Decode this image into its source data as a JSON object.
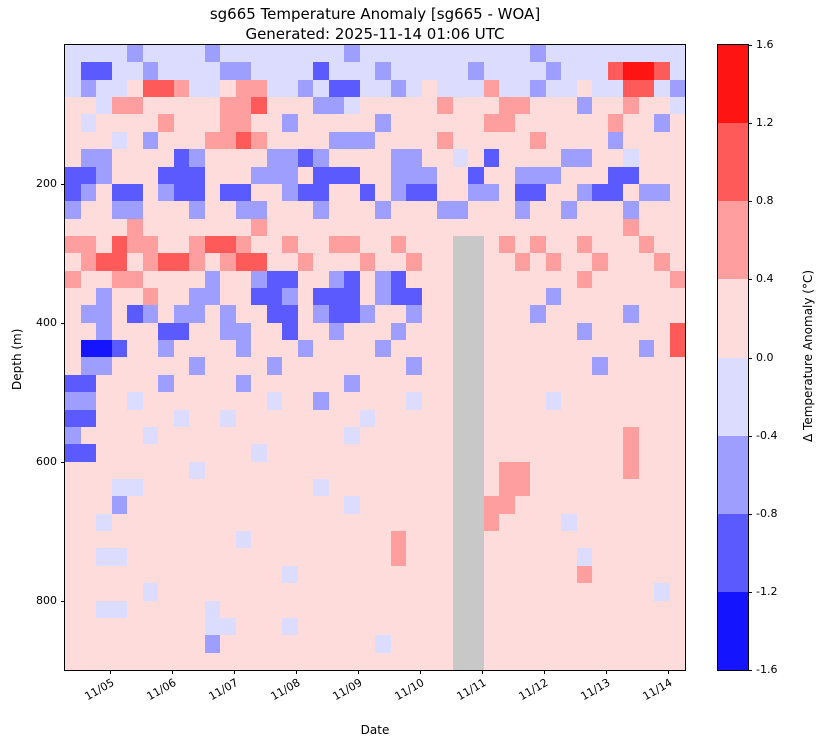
{
  "figure": {
    "title": "sg665 Temperature Anomaly [sg665 - WOA]",
    "subtitle": "Generated: 2025-11-14 01:06 UTC"
  },
  "chart_data": {
    "type": "heatmap",
    "title": "sg665 Temperature Anomaly [sg665 - WOA]",
    "subtitle": "Generated: 2025-11-14 01:06 UTC",
    "xlabel": "Date",
    "ylabel": "Depth (m)",
    "x_tick_labels": [
      "11/05",
      "11/06",
      "11/07",
      "11/08",
      "11/09",
      "11/10",
      "11/11",
      "11/12",
      "11/13",
      "11/14"
    ],
    "y_tick_labels": [
      "200",
      "400",
      "600",
      "800"
    ],
    "y_tick_depths": [
      200,
      400,
      600,
      800
    ],
    "depth_range_m": [
      0,
      900
    ],
    "n_time_columns": 40,
    "n_depth_rows": 36,
    "cell_depth_m": 25,
    "grid_on": false,
    "colorbar": {
      "label": "Δ Temperature Anomaly (°C)",
      "tick_labels": [
        "1.6",
        "1.2",
        "0.8",
        "0.4",
        "0.0",
        "-0.4",
        "-0.8",
        "-1.2",
        "-1.6"
      ],
      "range": [
        -1.6,
        1.6
      ],
      "segment_colors_top_to_bottom": [
        "#ff1414",
        "#ff5a5a",
        "#ff9e9e",
        "#ffdcdc",
        "#dcdcff",
        "#9e9eff",
        "#5a5aff",
        "#1414ff"
      ],
      "missing_color": "#c8c8c8"
    },
    "palette": {
      "a": "#1414ff",
      "b": "#5a5aff",
      "c": "#9e9eff",
      "d": "#dcdcff",
      "e": "#ffdcdc",
      "f": "#ff9e9e",
      "g": "#ff5a5a",
      "h": "#ff1414",
      "x": "#c8c8c8"
    },
    "palette_value_ranges": {
      "a": [
        -1.6,
        -1.2
      ],
      "b": [
        -1.2,
        -0.8
      ],
      "c": [
        -0.8,
        -0.4
      ],
      "d": [
        -0.4,
        0.0
      ],
      "e": [
        0.0,
        0.4
      ],
      "f": [
        0.4,
        0.8
      ],
      "g": [
        0.8,
        1.2
      ],
      "h": [
        1.2,
        1.6
      ],
      "x": "missing"
    },
    "grid_rows_surface_to_deep": [
      "ddddcddddcddddddddcdddddddddddcddddddddd",
      "dbbddcddddccddddbdddcdddddcddddcdddghhgd",
      "dcddeggfddeffddcdbbddcdedddfddcddeddggdc",
      "eedffeeeeeffgeeeccdeeeeefeeeffeeeceefeed",
      "edeeeefeeeffeeceeeeeceeeeeeffeeeeeefeece",
      "eeedeceeeffgfeeeeccceeeefeeeeefeeeeceeee",
      "ecceeeebceeeeccbceeeecceedebeeeecceedeee",
      "bbceeebbbeeecccebbbeeccceebeeccceeebbeee",
      "bcebbecbbebbeecbbeebecbbeeccebbeecbbecce",
      "ceecceeeceecceeeceeeceeecceeeceeceeeceee",
      "eeeefeeeeeeefeeeeeeeeeeeeeeeeeeeeeeefeee",
      "ffegffeefggfeefeeffeefeeexxefefeefeeefee",
      "efggefggfefggeefeeefeefeexxeefefeefeeefe",
      "feeffeeeeceecbbeecbecbeeexxeeeeeefeeeeef",
      "eeceefeecceebbcebbbecbbeexxeeeeceeeeeeee",
      "eccebcecceceebbecbbceeceexxeeeceeeeeceee",
      "eeceeebbeecceebeeceeeceeexxeeeeeeceeeeeg",
      "eaabeeceeeeceeeceeeeceeeexxeeeeeeeeeeceg",
      "ecceeeeeceeeeceeeeeeeeceexxeeeeeeeceeeee",
      "bbeeeeceeeeceeeeeeceeeeeexxeeeeeeeeeeeee",
      "cceedeeeeeeeedeeceeeeedeexxeeeedeeeeeeee",
      "bbeeeeedeedeeeeeeeedeeeeexxeeeeeeeeeeeee",
      "ceeeedeeeeeeeeeeeedeeeeeexxeeeeeeeeefeee",
      "bbeeeeeeeeeedeeeeeeeeeeeexxeeeeeeeeefeee",
      "eeeeeeeedeeeeeeeeeeeeeeeexxeffeeeeeefeee",
      "eeeddeeeeeeeeeeedeeeeeeeexxeffeeeeeeeeee",
      "eeeceeeeeeeeeeeeeedeeeeeexxffeeeeeeeeeee",
      "eedeeeeeeeeeeeeeeeeeeeeeexxfeeeedeeeeeee",
      "eeeeeeeeeeedeeeeeeeeefeeexxeeeeeeeeeeeee",
      "eeddeeeeeeeeeeeeeeeeefeeexxeeeeeedeeeeee",
      "eeeeeeeeeeeeeedeeeeeeeeeexxeeeeeefeeeeee",
      "eeeeedeeeeeeeeeeeeeeeeeeexxeeeeeeeeeeede",
      "eeddeeeeedeeeeeeeeeeeeeeexxeeeeeeeeeeeee",
      "eeeeeeeeeddeeedeeeeeeeeeexxeeeeeeeeeeeee",
      "eeeeeeeeeceeeeeeeeeedeeeexxeeeeeeeeeeeee",
      "eeeeeeeeeeeeeeeeeeeeeeeeexxeeeeeeeeeeeee"
    ]
  }
}
